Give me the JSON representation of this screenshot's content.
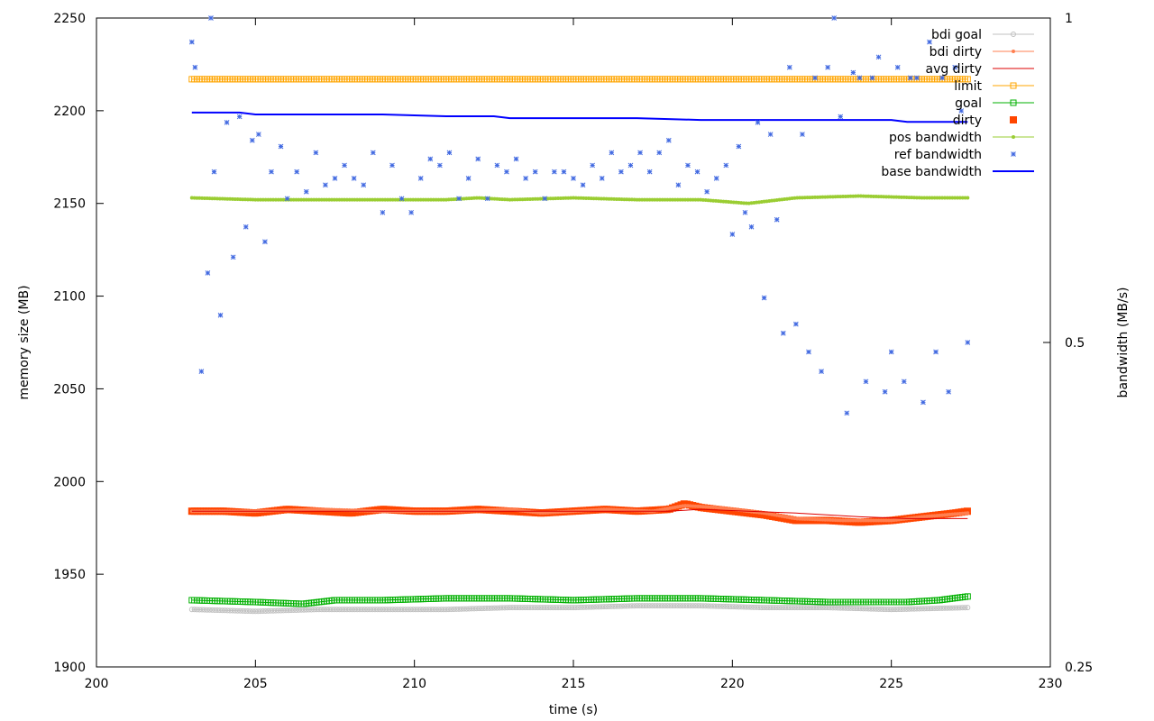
{
  "chart_data": {
    "type": "line",
    "title": "",
    "xlabel": "time (s)",
    "ylabel": "memory size (MB)",
    "y2label": "bandwidth (MB/s)",
    "xlim": [
      200,
      230
    ],
    "ylim": [
      1900,
      2250
    ],
    "y2lim": [
      0.25,
      1
    ],
    "y2scale": "log",
    "grid": false,
    "legend_position": "top-right",
    "x_ticks": [
      "200",
      "205",
      "210",
      "215",
      "220",
      "225",
      "230"
    ],
    "y_ticks": [
      "1900",
      "1950",
      "2000",
      "2050",
      "2100",
      "2150",
      "2200",
      "2250"
    ],
    "y2_ticks": [
      "0.25",
      "0.5",
      "1"
    ],
    "series": [
      {
        "name": "bdi goal",
        "color": "#c0c0c0",
        "style": "line-points",
        "marker": "circle",
        "axis": "y",
        "x": [
          203,
          205,
          207,
          209,
          211,
          213,
          215,
          217,
          219,
          221,
          223,
          225,
          227.4
        ],
        "y": [
          1931,
          1930,
          1931,
          1931,
          1931,
          1932,
          1932,
          1933,
          1933,
          1932,
          1932,
          1931,
          1932
        ]
      },
      {
        "name": "bdi dirty",
        "color": "#ff7f50",
        "style": "line-points",
        "marker": "dot",
        "axis": "y",
        "x": [
          203,
          205,
          207,
          209,
          211,
          213,
          214,
          216,
          217.5,
          218.5,
          219.5,
          221,
          222,
          223.5,
          225,
          226,
          227.4
        ],
        "y": [
          1984,
          1984,
          1985,
          1984,
          1984,
          1985,
          1983,
          1985,
          1984,
          1987,
          1986,
          1983,
          1980,
          1979,
          1979,
          1981,
          1983
        ]
      },
      {
        "name": "avg dirty",
        "color": "#dd0000",
        "style": "line",
        "axis": "y",
        "x": [
          203,
          206,
          209,
          212,
          215,
          217,
          218,
          219,
          220.5,
          222,
          224,
          225.5,
          227.4
        ],
        "y": [
          1984,
          1984,
          1984,
          1984,
          1984,
          1984,
          1984,
          1985,
          1984,
          1983,
          1981,
          1980,
          1980
        ]
      },
      {
        "name": "limit",
        "color": "#ffa500",
        "style": "line-points",
        "marker": "open-square",
        "axis": "y",
        "x": [
          203,
          227.4
        ],
        "y": [
          2217,
          2217
        ]
      },
      {
        "name": "goal",
        "color": "#00b000",
        "style": "line-points",
        "marker": "open-square",
        "axis": "y",
        "x": [
          203,
          205,
          206.5,
          207.5,
          209,
          211,
          213,
          215,
          217,
          219,
          221,
          223,
          225.5,
          226.5,
          227.4
        ],
        "y": [
          1936,
          1935,
          1934,
          1936,
          1936,
          1937,
          1937,
          1936,
          1937,
          1937,
          1936,
          1935,
          1935,
          1936,
          1938
        ]
      },
      {
        "name": "dirty",
        "color": "#ff4500",
        "style": "points",
        "marker": "filled-square",
        "axis": "y",
        "x": [
          203,
          204,
          205,
          206,
          207,
          208,
          209,
          210,
          211,
          212,
          213,
          214,
          215,
          216,
          217,
          218,
          218.5,
          219,
          220,
          221,
          222,
          223,
          224,
          225,
          226,
          227,
          227.4
        ],
        "y": [
          1984,
          1984,
          1983,
          1985,
          1984,
          1983,
          1985,
          1984,
          1984,
          1985,
          1984,
          1983,
          1984,
          1985,
          1984,
          1985,
          1988,
          1986,
          1984,
          1982,
          1979,
          1979,
          1978,
          1979,
          1981,
          1983,
          1984
        ]
      },
      {
        "name": "pos bandwidth",
        "color": "#9acd32",
        "style": "line-points",
        "marker": "dot",
        "axis": "y",
        "x": [
          203,
          205,
          207,
          209,
          211,
          212,
          213,
          215,
          217,
          219,
          220.5,
          222,
          224,
          226,
          227.4
        ],
        "y": [
          2153,
          2152,
          2152,
          2152,
          2152,
          2153,
          2152,
          2153,
          2152,
          2152,
          2150,
          2153,
          2154,
          2153,
          2153
        ]
      },
      {
        "name": "ref bandwidth",
        "color": "#4169e1",
        "style": "points",
        "marker": "star",
        "axis": "y",
        "x": [
          203.0,
          203.1,
          203.3,
          203.5,
          203.6,
          203.7,
          203.9,
          204.1,
          204.3,
          204.5,
          204.7,
          204.9,
          205.1,
          205.3,
          205.5,
          205.8,
          206.0,
          206.3,
          206.6,
          206.9,
          207.2,
          207.5,
          207.8,
          208.1,
          208.4,
          208.7,
          209.0,
          209.3,
          209.6,
          209.9,
          210.2,
          210.5,
          210.8,
          211.1,
          211.4,
          211.7,
          212.0,
          212.3,
          212.6,
          212.9,
          213.2,
          213.5,
          213.8,
          214.1,
          214.4,
          214.7,
          215.0,
          215.3,
          215.6,
          215.9,
          216.2,
          216.5,
          216.8,
          217.1,
          217.4,
          217.7,
          218.0,
          218.3,
          218.6,
          218.9,
          219.2,
          219.5,
          219.8,
          220.0,
          220.2,
          220.4,
          220.6,
          220.8,
          221.0,
          221.2,
          221.4,
          221.6,
          221.8,
          222.0,
          222.2,
          222.4,
          222.6,
          222.8,
          223.0,
          223.2,
          223.4,
          223.6,
          223.8,
          224.0,
          224.2,
          224.4,
          224.6,
          224.8,
          225.0,
          225.2,
          225.4,
          225.6,
          225.8,
          226.0,
          226.2,
          226.4,
          226.6,
          226.8,
          227.0,
          227.2,
          227.4
        ],
        "y": [
          0.95,
          0.9,
          0.47,
          0.58,
          1.0,
          0.72,
          0.53,
          0.8,
          0.6,
          0.81,
          0.64,
          0.77,
          0.78,
          0.62,
          0.72,
          0.76,
          0.68,
          0.72,
          0.69,
          0.75,
          0.7,
          0.71,
          0.73,
          0.71,
          0.7,
          0.75,
          0.66,
          0.73,
          0.68,
          0.66,
          0.71,
          0.74,
          0.73,
          0.75,
          0.68,
          0.71,
          0.74,
          0.68,
          0.73,
          0.72,
          0.74,
          0.71,
          0.72,
          0.68,
          0.72,
          0.72,
          0.71,
          0.7,
          0.73,
          0.71,
          0.75,
          0.72,
          0.73,
          0.75,
          0.72,
          0.75,
          0.77,
          0.7,
          0.73,
          0.72,
          0.69,
          0.71,
          0.73,
          0.63,
          0.76,
          0.66,
          0.64,
          0.8,
          0.55,
          0.78,
          0.65,
          0.51,
          0.9,
          0.52,
          0.78,
          0.49,
          0.88,
          0.47,
          0.9,
          1.0,
          0.81,
          0.43,
          0.89,
          0.88,
          0.46,
          0.88,
          0.92,
          0.45,
          0.49,
          0.9,
          0.46,
          0.88,
          0.88,
          0.44,
          0.95,
          0.49,
          0.88,
          0.45,
          0.9,
          0.82,
          0.5
        ]
      },
      {
        "name": "base bandwidth",
        "color": "#0000ff",
        "style": "line",
        "axis": "y",
        "x": [
          203,
          204.5,
          205,
          207,
          209,
          211,
          212.5,
          213,
          215,
          217,
          219,
          221,
          223,
          225,
          225.5,
          227.4
        ],
        "y": [
          2199,
          2199,
          2198,
          2198,
          2198,
          2197,
          2197,
          2196,
          2196,
          2196,
          2195,
          2195,
          2195,
          2195,
          2194,
          2194
        ]
      }
    ]
  }
}
